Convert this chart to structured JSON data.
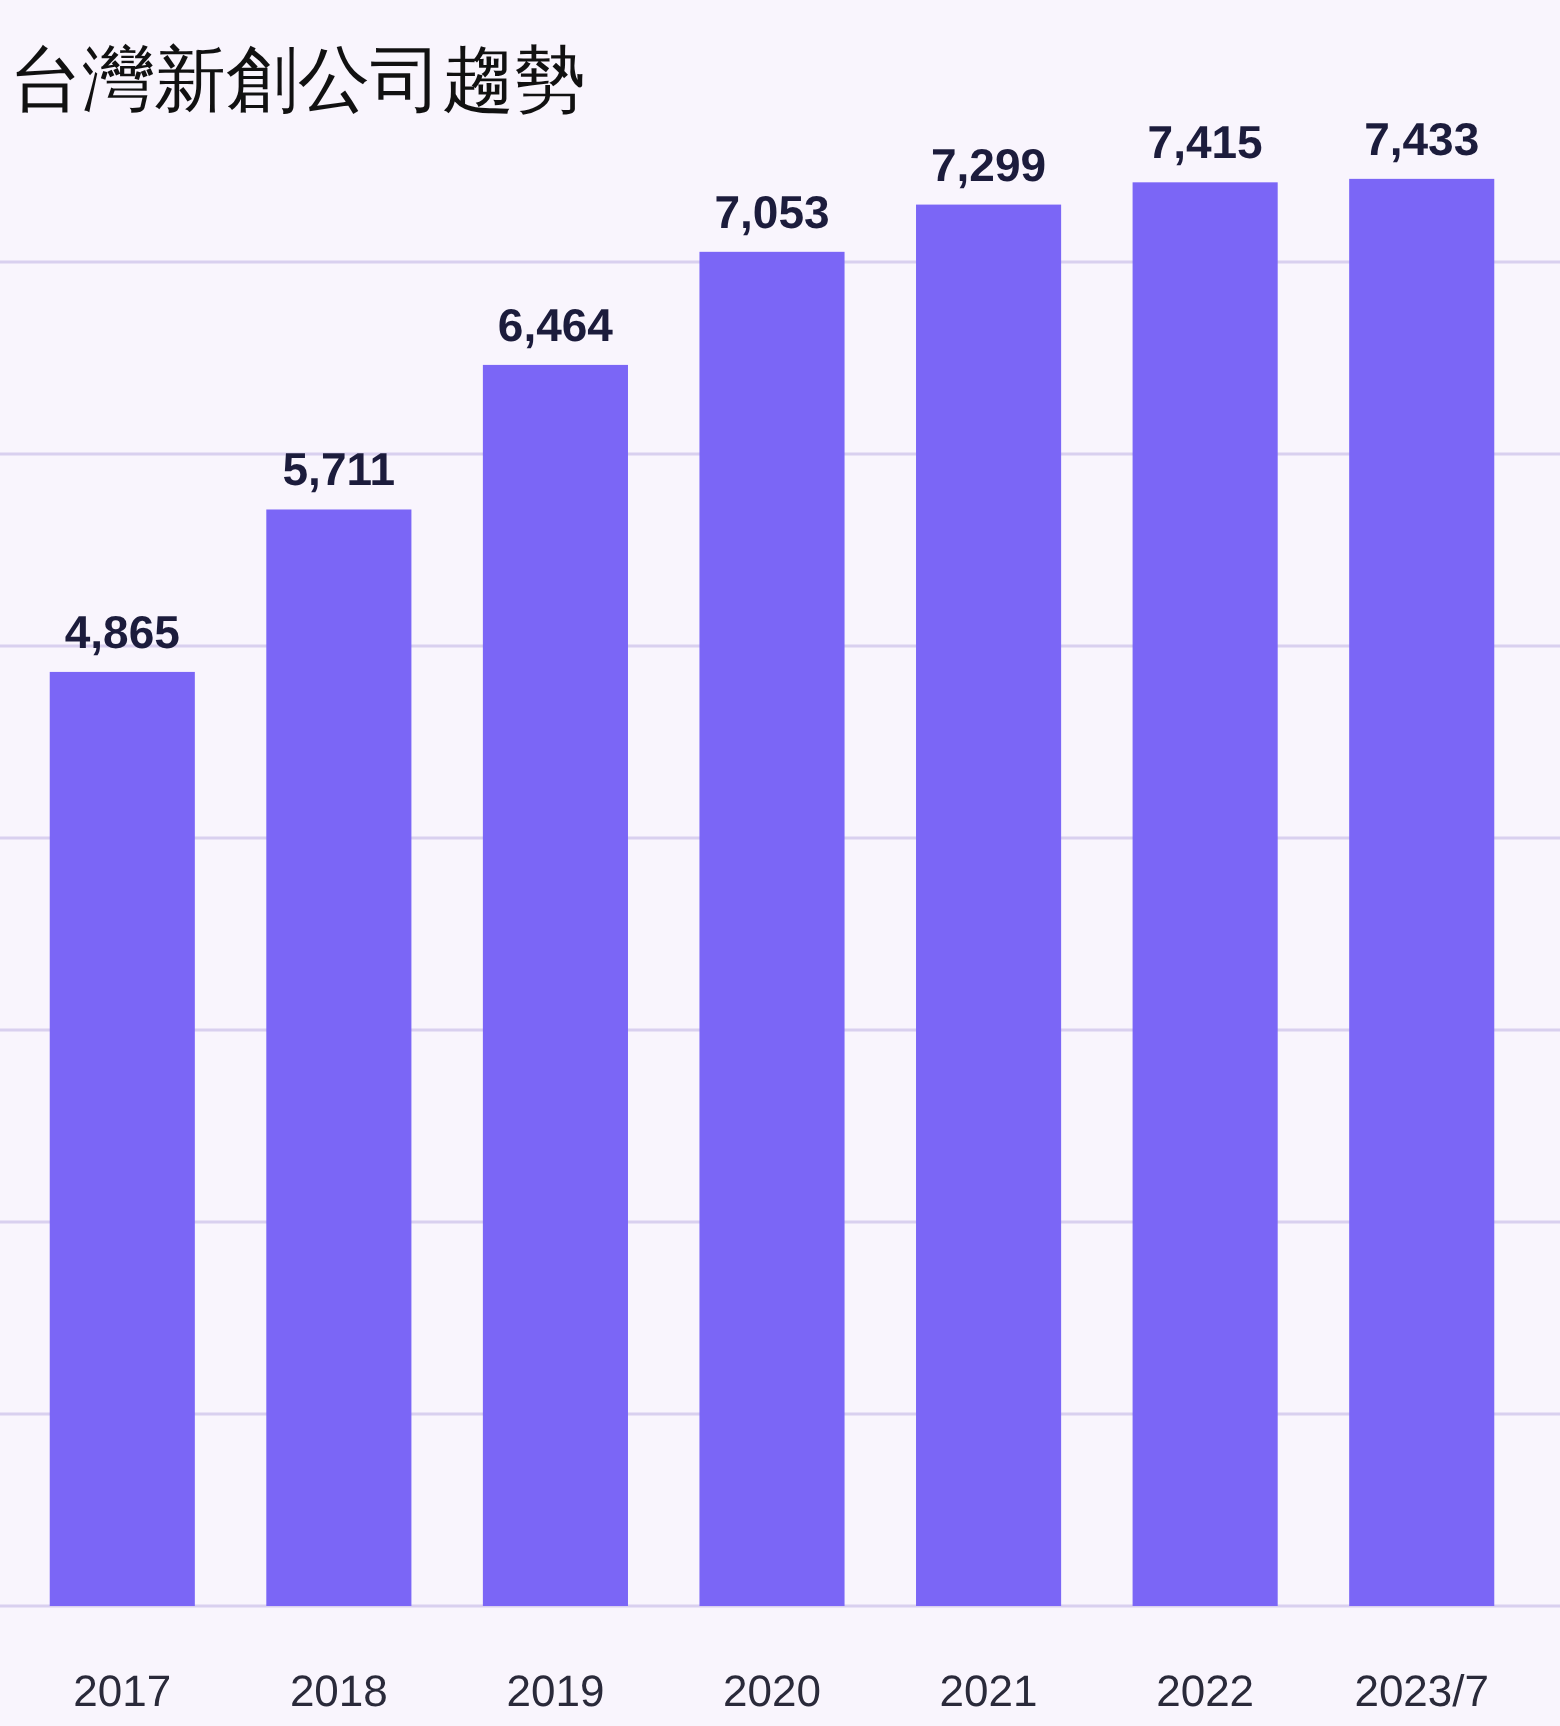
{
  "chart_data": {
    "type": "bar",
    "title": "台灣新創公司趨勢",
    "categories": [
      "2017",
      "2018",
      "2019",
      "2020",
      "2021",
      "2022",
      "2023/7"
    ],
    "values": [
      4865,
      5711,
      6464,
      7053,
      7299,
      7415,
      7433
    ],
    "value_labels": [
      "4,865",
      "5,711",
      "6,464",
      "7,053",
      "7,299",
      "7,415",
      "7,433"
    ],
    "color": "#7b66f6",
    "yticks": [
      {
        "value": 0,
        "label": null
      },
      {
        "value": 1000,
        "label": null
      },
      {
        "value": 2000,
        "label": null
      },
      {
        "value": 3000,
        "label": null
      },
      {
        "value": 4000,
        "label": null
      },
      {
        "value": 5000,
        "label": null
      },
      {
        "value": 6000,
        "label": null
      },
      {
        "value": 7000,
        "label": null
      }
    ],
    "tick_labels": "x",
    "grid": "y"
  }
}
